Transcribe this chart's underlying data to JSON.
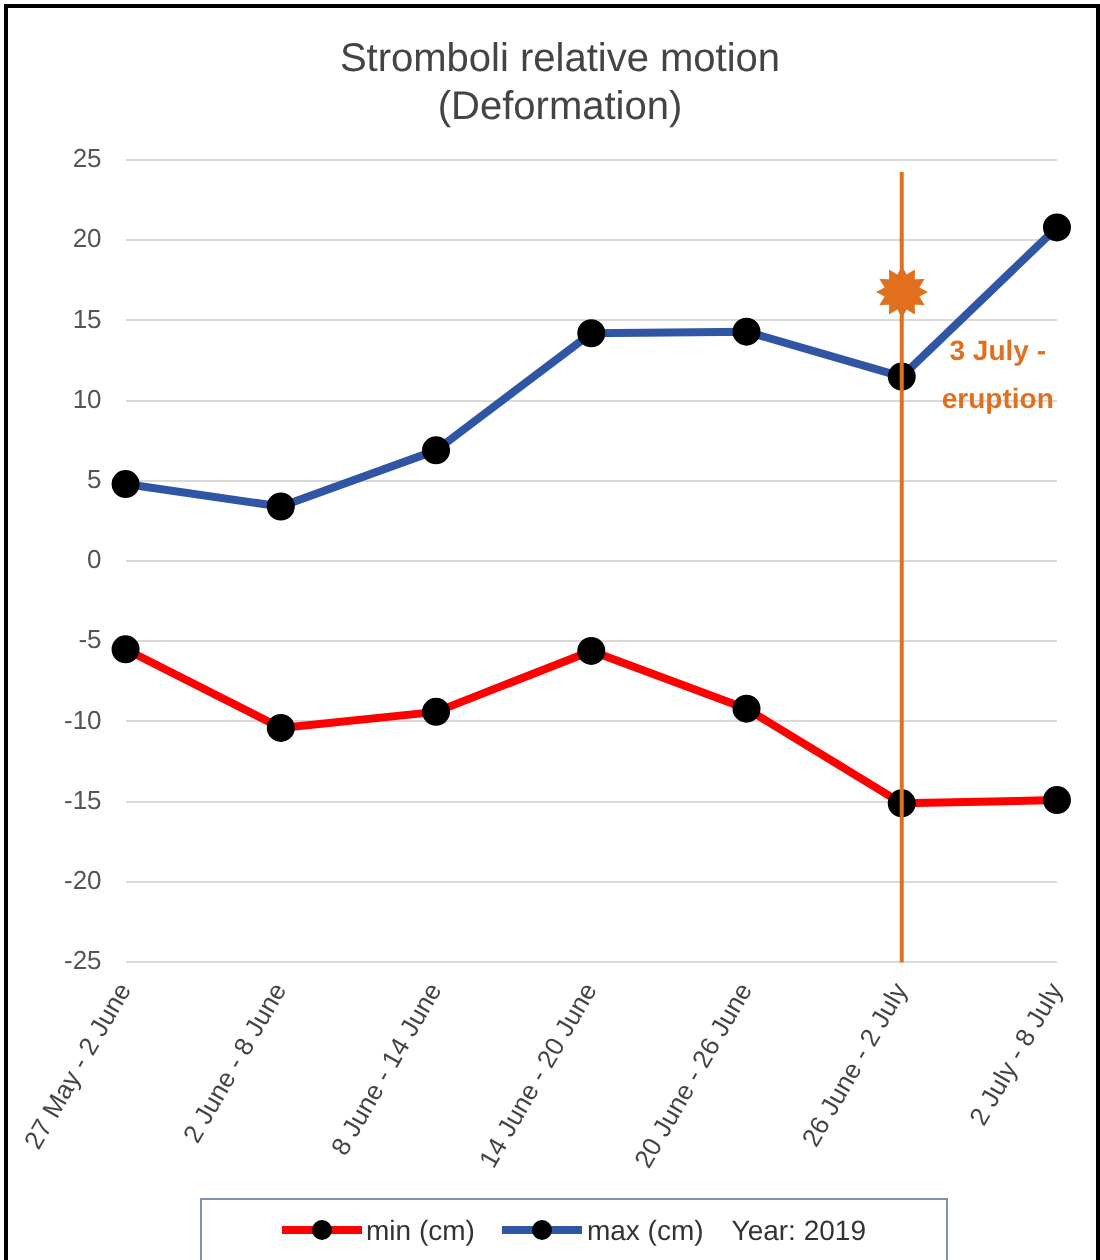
{
  "chart_data": {
    "type": "line",
    "title": "Stromboli relative motion\n(Deformation)",
    "categories": [
      "27 May - 2 June",
      "2 June - 8 June",
      "8 June - 14 June",
      "14 June - 20 June",
      "20 June - 26 June",
      "26 June - 2 July",
      "2 July - 8 July"
    ],
    "series": [
      {
        "name": "min (cm)",
        "color": "#ff0000",
        "values": [
          -5.5,
          -10.4,
          -9.4,
          -5.6,
          -9.2,
          -15.1,
          -14.9
        ]
      },
      {
        "name": "max (cm)",
        "color": "#2f55a4",
        "values": [
          4.8,
          3.4,
          6.9,
          14.2,
          14.3,
          11.5,
          20.8
        ]
      }
    ],
    "ylim": [
      -25,
      25
    ],
    "yticks": [
      -25,
      -20,
      -15,
      -10,
      -5,
      0,
      5,
      10,
      15,
      20,
      25
    ],
    "grid": "y",
    "legend": "bottom",
    "marker": "circle",
    "ref_lines": [
      {
        "axis": "x",
        "value": "26 June - 2 July",
        "label": "3 July - eruption",
        "color": "#e0701e"
      }
    ],
    "annotations": [
      "Year: 2019"
    ]
  }
}
